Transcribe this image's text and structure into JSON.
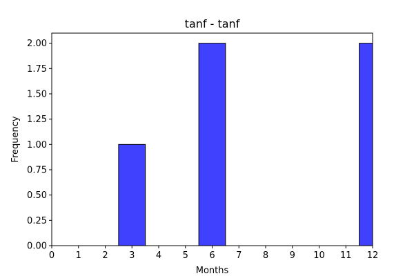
{
  "chart_data": {
    "type": "bar",
    "title": "tanf - tanf",
    "xlabel": "Months",
    "ylabel": "Frequency",
    "xlim": [
      0,
      12
    ],
    "ylim": [
      0,
      2.1
    ],
    "xticks": [
      "0",
      "1",
      "2",
      "3",
      "4",
      "5",
      "6",
      "7",
      "8",
      "9",
      "10",
      "11",
      "12"
    ],
    "yticks": [
      "0.00",
      "0.25",
      "0.50",
      "0.75",
      "1.00",
      "1.25",
      "1.50",
      "1.75",
      "2.00"
    ],
    "bars": [
      {
        "x_start": 2.5,
        "x_end": 3.5,
        "value": 1
      },
      {
        "x_start": 5.5,
        "x_end": 6.5,
        "value": 2
      },
      {
        "x_start": 11.5,
        "x_end": 12.5,
        "value": 2
      }
    ],
    "bar_color": "#4040ff",
    "grid": false
  }
}
